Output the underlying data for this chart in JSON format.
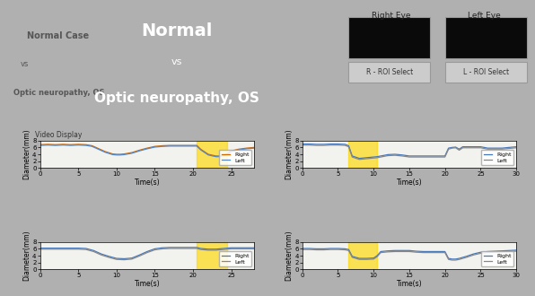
{
  "title_line1": "Normal",
  "title_vs": "vs",
  "title_line2": "Optic neuropathy, OS",
  "video_display_label": "Video Display",
  "right_eye_label": "Right Eye",
  "left_eye_label": "Left Eye",
  "r_roi_label": "R - ROI Select",
  "l_roi_label": "L - ROI Select",
  "header_bg": "#000000",
  "header_text_color": "#ffffff",
  "panel_bg": "#c8c8c8",
  "yellow_color": "#FFD700",
  "yellow_alpha": 0.65,
  "top_left": {
    "xmax": 28,
    "ymax": 8,
    "yticks": [
      0,
      2,
      4,
      6,
      8
    ],
    "xticks": [
      0,
      5,
      10,
      15,
      20,
      25
    ],
    "yellow_x": [
      20.5,
      24.5
    ],
    "right_color": "#cc6600",
    "left_color": "#5588cc",
    "right_data_x": [
      0,
      0.5,
      1,
      1.5,
      2,
      2.5,
      3,
      3.5,
      4,
      4.5,
      5,
      5.5,
      6,
      6.3,
      6.8,
      7.5,
      8.5,
      9.5,
      10,
      10.5,
      11,
      12,
      13,
      14,
      15,
      16,
      17,
      18,
      19,
      20,
      20.5,
      21,
      22,
      23,
      23.5,
      24,
      24.5,
      25,
      26,
      27,
      28
    ],
    "right_data_y": [
      6.8,
      6.85,
      6.9,
      6.85,
      6.8,
      6.85,
      6.9,
      6.85,
      6.8,
      6.85,
      6.9,
      6.85,
      6.8,
      6.7,
      6.5,
      5.8,
      4.8,
      4.1,
      4.0,
      4.0,
      4.1,
      4.5,
      5.2,
      5.8,
      6.3,
      6.5,
      6.6,
      6.6,
      6.6,
      6.6,
      6.6,
      5.5,
      4.0,
      3.5,
      3.5,
      3.8,
      4.2,
      5.0,
      5.5,
      5.8,
      6.0
    ],
    "left_data_x": [
      0,
      0.5,
      1,
      1.5,
      2,
      2.5,
      3,
      3.5,
      4,
      4.5,
      5,
      5.5,
      6,
      6.3,
      6.8,
      7.5,
      8.5,
      9.5,
      10,
      10.5,
      11,
      12,
      13,
      14,
      15,
      16,
      17,
      18,
      19,
      20,
      20.5,
      21,
      22,
      23,
      23.5,
      24,
      24.5,
      25,
      26,
      27,
      28
    ],
    "left_data_y": [
      6.6,
      6.65,
      6.7,
      6.65,
      6.6,
      6.65,
      6.7,
      6.65,
      6.6,
      6.65,
      6.7,
      6.65,
      6.6,
      6.5,
      6.3,
      5.6,
      4.6,
      3.9,
      3.8,
      3.8,
      3.9,
      4.3,
      5.0,
      5.6,
      6.1,
      6.3,
      6.4,
      6.4,
      6.4,
      6.4,
      6.4,
      5.3,
      3.8,
      3.3,
      3.3,
      3.6,
      4.0,
      4.8,
      5.3,
      5.6,
      5.8
    ]
  },
  "top_right": {
    "xmax": 30,
    "ymax": 8,
    "yticks": [
      0,
      2,
      4,
      6,
      8
    ],
    "xticks": [
      0,
      5,
      10,
      15,
      20,
      25,
      30
    ],
    "yellow_x": [
      6.5,
      10.5
    ],
    "right_color": "#4477bb",
    "left_color": "#888888",
    "right_data_x": [
      0,
      1,
      2,
      3,
      4,
      5,
      6,
      6.5,
      7,
      8,
      9,
      10,
      10.5,
      11,
      12,
      13,
      14,
      15,
      16,
      17,
      18,
      19,
      20,
      20.5,
      21,
      21.5,
      22,
      22.5,
      23,
      24,
      25,
      26,
      27,
      28,
      29,
      30
    ],
    "right_data_y": [
      7.0,
      7.0,
      6.9,
      6.9,
      7.0,
      7.0,
      6.9,
      6.5,
      3.5,
      2.8,
      3.0,
      3.2,
      3.3,
      3.5,
      3.9,
      4.0,
      3.8,
      3.5,
      3.5,
      3.5,
      3.5,
      3.5,
      3.5,
      5.8,
      6.0,
      6.1,
      5.5,
      6.2,
      6.2,
      6.2,
      6.2,
      5.8,
      5.8,
      5.8,
      6.0,
      6.2
    ],
    "left_data_x": [
      0,
      1,
      2,
      3,
      4,
      5,
      6,
      6.5,
      7,
      8,
      9,
      10,
      10.5,
      11,
      12,
      13,
      14,
      15,
      16,
      17,
      18,
      19,
      20,
      20.5,
      21,
      21.5,
      22,
      22.5,
      23,
      24,
      25,
      26,
      27,
      28,
      29,
      30
    ],
    "left_data_y": [
      6.7,
      6.7,
      6.6,
      6.6,
      6.7,
      6.7,
      6.6,
      6.2,
      3.2,
      2.5,
      2.7,
      2.9,
      3.0,
      3.2,
      3.6,
      3.7,
      3.5,
      3.2,
      3.2,
      3.2,
      3.2,
      3.2,
      3.2,
      5.5,
      5.8,
      5.9,
      5.2,
      5.9,
      5.9,
      5.9,
      5.9,
      5.5,
      5.5,
      5.5,
      5.7,
      5.9
    ]
  },
  "bot_left": {
    "xmax": 28,
    "ymax": 8,
    "yticks": [
      0,
      2,
      4,
      6,
      8
    ],
    "xticks": [
      0,
      5,
      10,
      15,
      20,
      25
    ],
    "yellow_x": [
      20.5,
      24.5
    ],
    "right_color": "#4477bb",
    "left_color": "#888888",
    "right_data_x": [
      0,
      1,
      2,
      3,
      4,
      5,
      6,
      7,
      8,
      9,
      10,
      11,
      12,
      13,
      14,
      15,
      16,
      17,
      18,
      19,
      20,
      20.5,
      21,
      22,
      23,
      23.5,
      24,
      24.5,
      25,
      26,
      27,
      28
    ],
    "right_data_y": [
      6.2,
      6.2,
      6.2,
      6.2,
      6.2,
      6.2,
      6.1,
      5.5,
      4.5,
      3.8,
      3.2,
      3.1,
      3.3,
      4.2,
      5.2,
      6.0,
      6.3,
      6.4,
      6.4,
      6.4,
      6.4,
      6.4,
      6.1,
      5.9,
      5.9,
      6.0,
      6.1,
      6.2,
      6.3,
      6.3,
      6.3,
      6.3
    ],
    "left_data_x": [
      0,
      1,
      2,
      3,
      4,
      5,
      6,
      7,
      8,
      9,
      10,
      11,
      12,
      13,
      14,
      15,
      16,
      17,
      18,
      19,
      20,
      20.5,
      21,
      22,
      23,
      23.5,
      24,
      24.5,
      25,
      26,
      27,
      28
    ],
    "left_data_y": [
      5.9,
      5.9,
      5.9,
      5.9,
      5.9,
      5.9,
      5.8,
      5.2,
      4.2,
      3.5,
      2.9,
      2.8,
      3.0,
      3.9,
      4.9,
      5.7,
      6.0,
      6.1,
      6.1,
      6.1,
      6.1,
      6.1,
      5.8,
      5.6,
      5.6,
      5.7,
      5.8,
      5.9,
      6.0,
      6.0,
      6.0,
      6.0
    ]
  },
  "bot_right": {
    "xmax": 30,
    "ymax": 8,
    "yticks": [
      0,
      2,
      4,
      6,
      8
    ],
    "xticks": [
      0,
      5,
      10,
      15,
      20,
      25,
      30
    ],
    "yellow_x": [
      6.5,
      10.5
    ],
    "right_color": "#4477bb",
    "left_color": "#888888",
    "right_data_x": [
      0,
      1,
      2,
      3,
      4,
      5,
      6,
      6.5,
      7,
      8,
      9,
      10,
      10.5,
      11,
      12,
      13,
      14,
      15,
      16,
      17,
      18,
      19,
      20,
      20.5,
      21,
      21.5,
      22,
      23,
      24,
      25,
      26,
      27,
      28,
      29,
      30
    ],
    "right_data_y": [
      6.1,
      6.1,
      6.0,
      6.0,
      6.1,
      6.1,
      6.0,
      5.8,
      3.8,
      3.2,
      3.2,
      3.3,
      4.0,
      5.2,
      5.4,
      5.5,
      5.5,
      5.5,
      5.3,
      5.2,
      5.2,
      5.2,
      5.2,
      3.2,
      3.0,
      3.0,
      3.2,
      3.8,
      4.5,
      5.0,
      5.2,
      5.3,
      5.4,
      5.5,
      5.6
    ],
    "left_data_x": [
      0,
      1,
      2,
      3,
      4,
      5,
      6,
      6.5,
      7,
      8,
      9,
      10,
      10.5,
      11,
      12,
      13,
      14,
      15,
      16,
      17,
      18,
      19,
      20,
      20.5,
      21,
      21.5,
      22,
      23,
      24,
      25,
      26,
      27,
      28,
      29,
      30
    ],
    "left_data_y": [
      5.8,
      5.8,
      5.7,
      5.7,
      5.8,
      5.8,
      5.7,
      5.5,
      3.5,
      2.9,
      2.9,
      3.0,
      3.7,
      4.9,
      5.1,
      5.2,
      5.2,
      5.2,
      5.0,
      4.9,
      4.9,
      4.9,
      4.9,
      2.9,
      2.7,
      2.7,
      2.9,
      3.5,
      4.2,
      4.7,
      4.9,
      5.0,
      5.1,
      5.2,
      5.3
    ]
  }
}
